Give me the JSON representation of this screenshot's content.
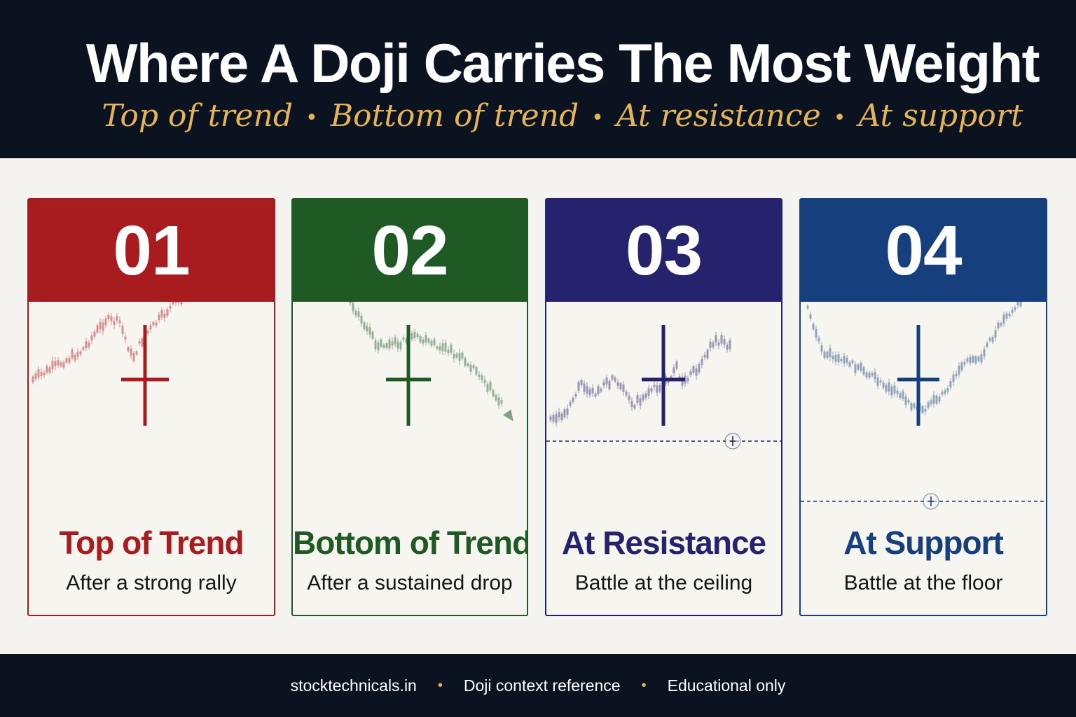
{
  "header": {
    "title": "Where  A Doji Carries The Most Weight",
    "subtitle_items": [
      "Top of trend",
      "Bottom of trend",
      "At resistance",
      "At support"
    ],
    "separator": "•",
    "background_color": "#0b1220",
    "accent_color": "#e5b45a"
  },
  "cards": [
    {
      "number": "01",
      "title": "Top of Trend",
      "subtitle": "After a strong rally",
      "color": "#a81c1f",
      "illustration": "uptrend-candles-with-doji-icon"
    },
    {
      "number": "02",
      "title": "Bottom of Trend",
      "subtitle": "After a sustained drop",
      "color": "#1f5a25",
      "illustration": "downtrend-candles-with-doji-icon"
    },
    {
      "number": "03",
      "title": "At Resistance",
      "subtitle": "Battle at the ceiling",
      "color": "#26236e",
      "illustration": "rally-to-resistance-line-with-doji-icon"
    },
    {
      "number": "04",
      "title": "At Support",
      "subtitle": "Battle at the floor",
      "color": "#163f7d",
      "illustration": "dip-to-support-line-with-doji-icon"
    }
  ],
  "footer": {
    "items": [
      "stocktechnicals.in",
      "Doji context reference",
      "Educational only"
    ],
    "separator": "•"
  }
}
